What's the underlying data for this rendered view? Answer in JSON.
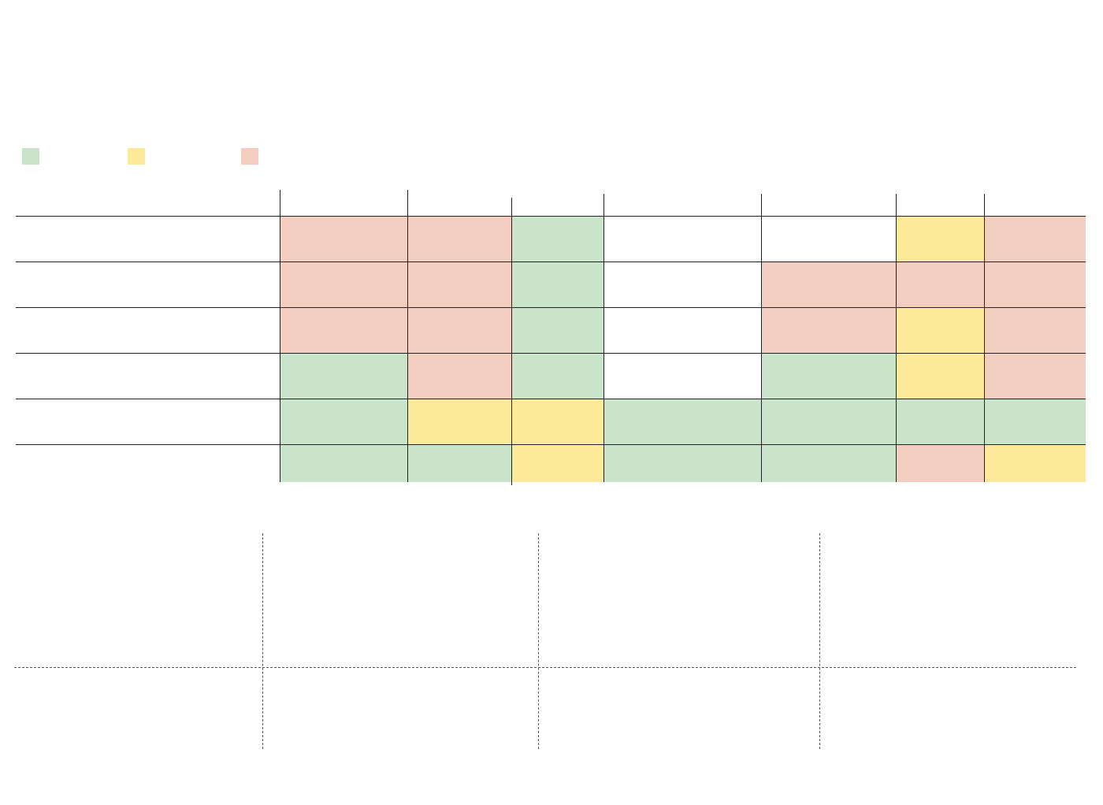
{
  "colors": {
    "green": "#c9e4cb",
    "yellow": "#fde99a",
    "red": "#f3cdc0",
    "white": "#ffffff"
  },
  "legend": [
    {
      "color": "green"
    },
    {
      "color": "yellow"
    },
    {
      "color": "red"
    }
  ],
  "grid": {
    "rows": [
      [
        "red",
        "red",
        "green",
        "white",
        "white",
        "yellow",
        "red"
      ],
      [
        "red",
        "red",
        "green",
        "white",
        "red",
        "red",
        "red"
      ],
      [
        "red",
        "red",
        "green",
        "white",
        "red",
        "yellow",
        "red"
      ],
      [
        "green",
        "red",
        "green",
        "white",
        "green",
        "yellow",
        "red"
      ],
      [
        "green",
        "yellow",
        "yellow",
        "green",
        "green",
        "green",
        "green"
      ],
      [
        "green",
        "green",
        "yellow",
        "green",
        "green",
        "red",
        "yellow"
      ]
    ]
  }
}
